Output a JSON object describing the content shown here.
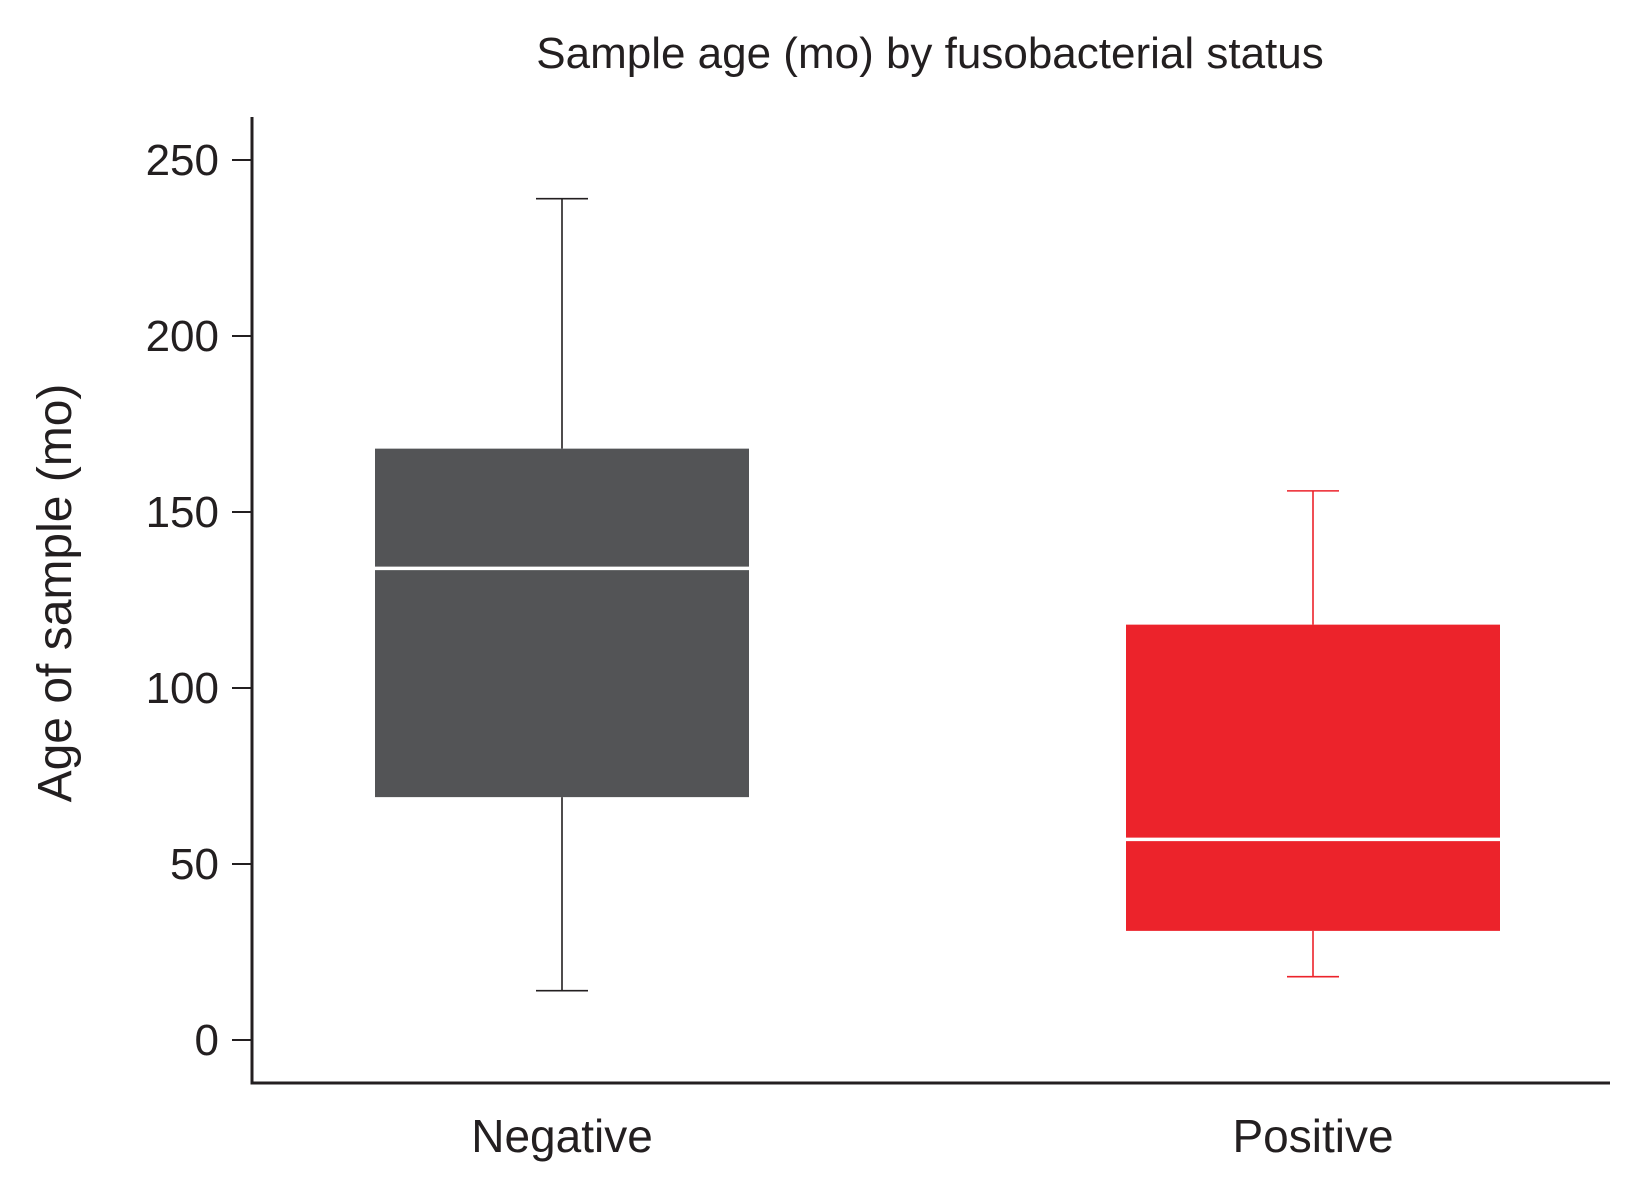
{
  "chart_data": {
    "type": "box",
    "title": "Sample age (mo) by fusobacterial status",
    "xlabel": "",
    "ylabel": "Age of sample (mo)",
    "ylim": [
      -12,
      262
    ],
    "yticks": [
      0,
      50,
      100,
      150,
      200,
      250
    ],
    "ytick_labels": [
      "0",
      "50",
      "100",
      "150",
      "200",
      "250"
    ],
    "grid": false,
    "legend": "none",
    "categories": [
      "Negative",
      "Positive"
    ],
    "boxes": [
      {
        "category": "Negative",
        "whisker_low": 14,
        "q1": 69,
        "median": 134,
        "q3": 168,
        "whisker_high": 239,
        "color": "#535456",
        "whisker_color": "#231f20"
      },
      {
        "category": "Positive",
        "whisker_low": 18,
        "q1": 31,
        "median": 57,
        "q3": 118,
        "whisker_high": 156,
        "color": "#ec232b",
        "whisker_color": "#ec232b"
      }
    ],
    "median_line_color": "#ffffff"
  }
}
